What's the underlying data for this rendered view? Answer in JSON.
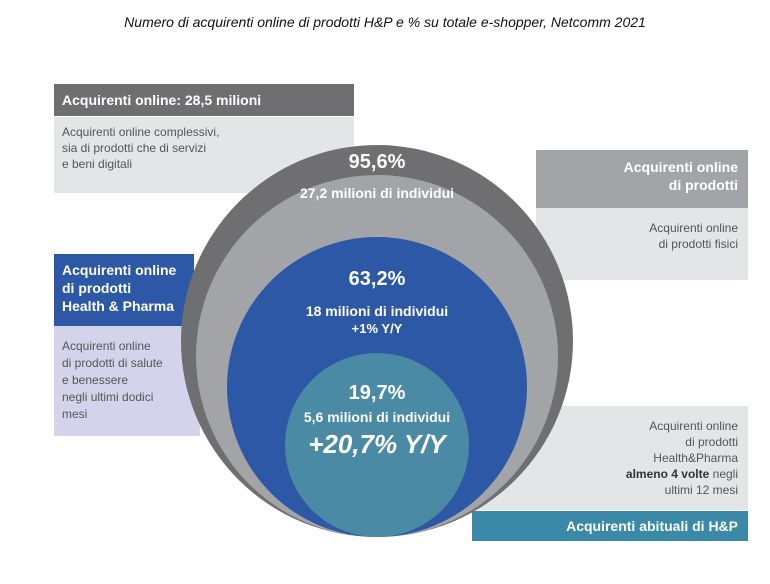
{
  "title": "Numero di acquirenti online di prodotti H&P e % su totale e-shopper, Netcomm 2021",
  "top_left": {
    "header": "Acquirenti online: 28,5 milioni",
    "desc": [
      "Acquirenti online complessivi,",
      "sia di prodotti che di servizi",
      "e beni digitali"
    ]
  },
  "top_right": {
    "header": [
      "Acquirenti online",
      "di prodotti"
    ],
    "desc": [
      "Acquirenti online",
      "di prodotti fisici"
    ]
  },
  "mid_left": {
    "header": [
      "Acquirenti online",
      "di prodotti",
      "Health & Pharma"
    ],
    "desc": [
      "Acquirenti online",
      "di prodotti di salute",
      "e benessere",
      "negli ultimi dodici",
      "mesi"
    ]
  },
  "bottom_right": {
    "desc": [
      "Acquirenti online",
      "di prodotti",
      "Health&Pharma"
    ],
    "desc_bold": "almeno 4 volte",
    "desc_after": "negli",
    "desc_last": "ultimi 12 mesi",
    "header": "Acquirenti abituali di H&P"
  },
  "rings": {
    "r2_pct": "95,6%",
    "r2_count": "27,2 milioni di individui",
    "r3_pct": "63,2%",
    "r3_count": "18 milioni di individui",
    "r3_growth": "+1% Y/Y",
    "r4_pct": "19,7%",
    "r4_count": "5,6 milioni di individui",
    "r4_growth": "+20,7% Y/Y"
  },
  "colors": {
    "dark_gray": "#6f6f72",
    "mid_gray": "#a2a4a8",
    "light_gray": "#e4e5e6",
    "blue": "#2c58a6",
    "teal": "#4a8aa5",
    "lavender": "#d3d3ec",
    "teal_header": "#3a89a8"
  }
}
